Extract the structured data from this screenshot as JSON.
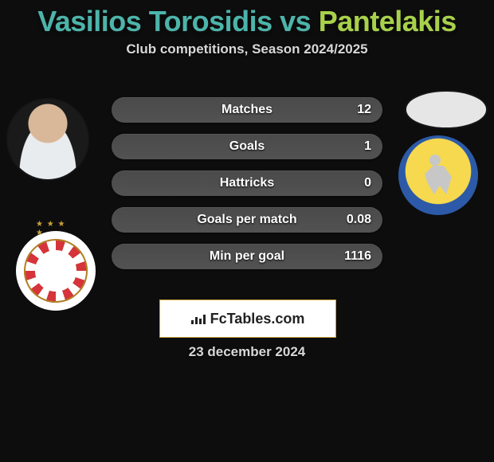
{
  "title": {
    "player1": "Vasilios Torosidis",
    "vs": "vs",
    "player2": "Pantelakis"
  },
  "subtitle": "Club competitions, Season 2024/2025",
  "stats": [
    {
      "label": "Matches",
      "value_right": "12"
    },
    {
      "label": "Goals",
      "value_right": "1"
    },
    {
      "label": "Hattricks",
      "value_right": "0"
    },
    {
      "label": "Goals per match",
      "value_right": "0.08"
    },
    {
      "label": "Min per goal",
      "value_right": "1116"
    }
  ],
  "branding": {
    "site": "FcTables.com"
  },
  "date": "23 december 2024",
  "colors": {
    "background": "#0d0d0d",
    "title_p1": "#4db4aa",
    "title_p2": "#a8d14b",
    "bar_fill_top": "#4a4a4a",
    "bar_fill_bottom": "#525252",
    "text": "#d8d8d8",
    "logo_border": "#c9a440"
  },
  "badges": {
    "left_player_has_photo": true,
    "right_player_has_photo": false,
    "left_club": "olympiacos",
    "right_club": "panetolikos"
  }
}
